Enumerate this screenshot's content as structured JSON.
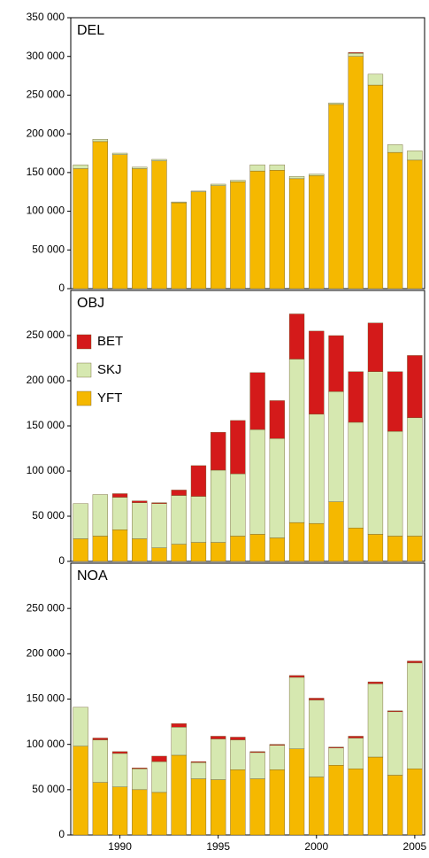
{
  "chart_data": [
    {
      "type": "bar",
      "stacked": true,
      "title": "DEL",
      "ylim": [
        0,
        350000
      ],
      "yticks": [
        0,
        {
          "value": 50000,
          "label": "50 000"
        },
        {
          "value": 100000,
          "label": "100 000"
        },
        {
          "value": 150000,
          "label": "150 000"
        },
        {
          "value": 200000,
          "label": "200 000"
        },
        {
          "value": 250000,
          "label": "250 000"
        },
        {
          "value": 300000,
          "label": "300 000"
        },
        {
          "value": 350000,
          "label": "350 000"
        }
      ],
      "series": [
        {
          "color": "#f5b800",
          "values": [
            155000,
            190000,
            173000,
            155000,
            165000,
            111000,
            125000,
            133000,
            138000,
            152000,
            153000,
            142000,
            146000,
            238000,
            300000,
            263000,
            176000,
            166000
          ]
        },
        {
          "color": "#d6e8b0",
          "values": [
            5000,
            3000,
            2000,
            2000,
            2000,
            1000,
            1000,
            2000,
            2000,
            8000,
            7000,
            3000,
            2000,
            2000,
            4000,
            14000,
            10000,
            12000
          ]
        },
        {
          "color": "#d41a1a",
          "values": [
            0,
            0,
            0,
            0,
            0,
            0,
            0,
            0,
            0,
            0,
            0,
            0,
            0,
            0,
            1000,
            0,
            0,
            0
          ]
        }
      ]
    },
    {
      "type": "bar",
      "stacked": true,
      "title": "OBJ",
      "legend": "upper left",
      "ylim": [
        0,
        300000
      ],
      "yticks": [
        0,
        {
          "value": 50000,
          "label": "50 000"
        },
        {
          "value": 100000,
          "label": "100 000"
        },
        {
          "value": 150000,
          "label": "150 000"
        },
        {
          "value": 200000,
          "label": "200 000"
        },
        {
          "value": 250000,
          "label": "250 000"
        }
      ],
      "series": [
        {
          "name": "YFT",
          "color": "#f5b800",
          "values": [
            25000,
            28000,
            35000,
            25000,
            15000,
            19000,
            21000,
            21000,
            28000,
            30000,
            26000,
            43000,
            42000,
            66000,
            37000,
            30000,
            28000,
            28000
          ]
        },
        {
          "name": "SKJ",
          "color": "#d6e8b0",
          "values": [
            39000,
            46000,
            36000,
            40000,
            49000,
            54000,
            51000,
            80000,
            69000,
            116000,
            110000,
            181000,
            121000,
            122000,
            117000,
            180000,
            116000,
            131000
          ]
        },
        {
          "name": "BET",
          "color": "#d41a1a",
          "values": [
            0,
            0,
            4000,
            2000,
            1000,
            6000,
            34000,
            42000,
            59000,
            63000,
            42000,
            50000,
            92000,
            62000,
            56000,
            54000,
            66000,
            69000
          ]
        }
      ]
    },
    {
      "type": "bar",
      "stacked": true,
      "title": "NOA",
      "categories": [
        null,
        null,
        "1990",
        null,
        null,
        null,
        null,
        "1995",
        null,
        null,
        null,
        null,
        "2000",
        null,
        null,
        null,
        null,
        "2005"
      ],
      "ylim": [
        0,
        300000
      ],
      "yticks": [
        0,
        {
          "value": 50000,
          "label": "50 000"
        },
        {
          "value": 100000,
          "label": "100 000"
        },
        {
          "value": 150000,
          "label": "150 000"
        },
        {
          "value": 200000,
          "label": "200 000"
        },
        {
          "value": 250000,
          "label": "250 000"
        }
      ],
      "series": [
        {
          "color": "#f5b800",
          "values": [
            98000,
            58000,
            53000,
            50000,
            47000,
            88000,
            62000,
            61000,
            72000,
            62000,
            72000,
            95000,
            64000,
            77000,
            73000,
            86000,
            66000,
            73000
          ]
        },
        {
          "color": "#d6e8b0",
          "values": [
            43000,
            47000,
            37000,
            23000,
            34000,
            31000,
            18000,
            45000,
            33000,
            29000,
            27000,
            79000,
            85000,
            19000,
            34000,
            81000,
            70000,
            117000
          ]
        },
        {
          "color": "#d41a1a",
          "values": [
            0,
            2000,
            2000,
            1000,
            6000,
            4000,
            1000,
            3000,
            3000,
            1000,
            1000,
            2000,
            2000,
            1000,
            2000,
            2000,
            1000,
            2000
          ]
        }
      ]
    }
  ]
}
